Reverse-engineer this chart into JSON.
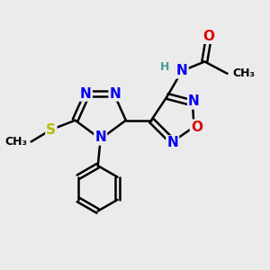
{
  "background_color": "#ebebeb",
  "atom_colors": {
    "N": "#0000ee",
    "O": "#dd0000",
    "S": "#bbbb00",
    "H": "#4d9999",
    "C": "#000000"
  },
  "bond_color": "#000000",
  "bond_width": 1.8,
  "font_size_atoms": 11,
  "font_size_small": 9,
  "font_size_methyl": 9
}
